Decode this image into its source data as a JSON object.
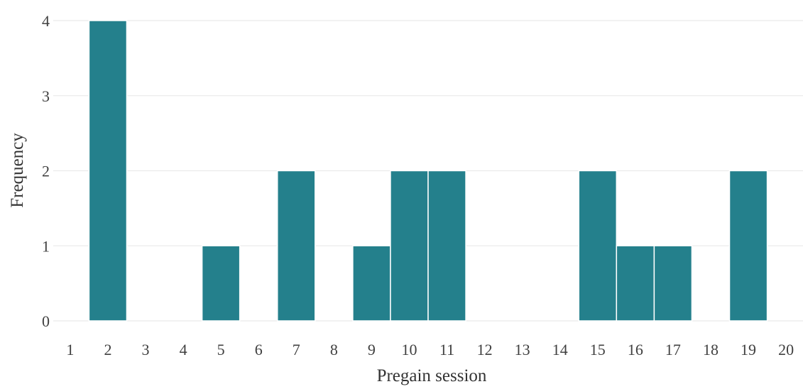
{
  "chart_data": {
    "type": "bar",
    "xlabel": "Pregain session",
    "ylabel": "Frequency",
    "x_ticks": [
      "1",
      "2",
      "3",
      "4",
      "5",
      "6",
      "7",
      "8",
      "9",
      "10",
      "11",
      "12",
      "13",
      "14",
      "15",
      "16",
      "17",
      "18",
      "19",
      "20"
    ],
    "y_ticks": [
      "0",
      "1",
      "2",
      "3",
      "4"
    ],
    "bins": [
      {
        "x": 2,
        "value": 4
      },
      {
        "x": 5,
        "value": 1
      },
      {
        "x": 7,
        "value": 2
      },
      {
        "x": 9,
        "value": 1
      },
      {
        "x": 10,
        "value": 2
      },
      {
        "x": 11,
        "value": 2
      },
      {
        "x": 15,
        "value": 2
      },
      {
        "x": 16,
        "value": 1
      },
      {
        "x": 17,
        "value": 1
      },
      {
        "x": 19,
        "value": 2
      }
    ],
    "xlim": [
      0.55,
      20.45
    ],
    "ylim": [
      0,
      4
    ],
    "grid": true,
    "bar_color": "#24808c"
  }
}
